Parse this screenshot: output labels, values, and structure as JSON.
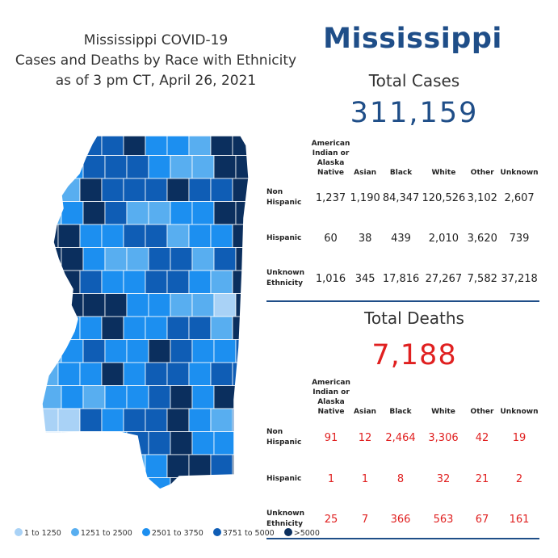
{
  "title_lines": [
    "Mississippi COVID-19",
    "Cases and Deaths by Race with Ethnicity",
    "as of 3 pm CT, April 26, 2021"
  ],
  "state_name": "Mississippi",
  "cases": {
    "heading": "Total Cases",
    "total": "311,159"
  },
  "deaths": {
    "heading": "Total Deaths",
    "total": "7,188"
  },
  "legend": [
    {
      "label": "1 to 1250",
      "color": "#a9d2f6"
    },
    {
      "label": "1251 to 2500",
      "color": "#58aef0"
    },
    {
      "label": "2501 to 3750",
      "color": "#1c8ff0"
    },
    {
      "label": "3751 to 5000",
      "color": "#0f5db5"
    },
    {
      "label": ">5000",
      "color": "#0b2f5e"
    }
  ],
  "chart_data": [
    {
      "type": "table",
      "title": "Total Cases",
      "columns": [
        "American Indian or Alaska Native",
        "Asian",
        "Black",
        "White",
        "Other",
        "Unknown"
      ],
      "rows": [
        {
          "label": "Non Hispanic",
          "values": [
            "1,237",
            "1,190",
            "84,347",
            "120,526",
            "3,102",
            "2,607"
          ]
        },
        {
          "label": "Hispanic",
          "values": [
            "60",
            "38",
            "439",
            "2,010",
            "3,620",
            "739"
          ]
        },
        {
          "label": "Unknown Ethnicity",
          "values": [
            "1,016",
            "345",
            "17,816",
            "27,267",
            "7,582",
            "37,218"
          ]
        }
      ]
    },
    {
      "type": "table",
      "title": "Total Deaths",
      "columns": [
        "American Indian or Alaska Native",
        "Asian",
        "Black",
        "White",
        "Other",
        "Unknown"
      ],
      "rows": [
        {
          "label": "Non Hispanic",
          "values": [
            "91",
            "12",
            "2,464",
            "3,306",
            "42",
            "19"
          ]
        },
        {
          "label": "Hispanic",
          "values": [
            "1",
            "1",
            "8",
            "32",
            "21",
            "2"
          ]
        },
        {
          "label": "Unknown Ethnicity",
          "values": [
            "25",
            "7",
            "366",
            "563",
            "67",
            "161"
          ]
        }
      ]
    },
    {
      "type": "heatmap",
      "title": "",
      "legend": [
        "1 to 1250",
        "1251 to 2500",
        "2501 to 3750",
        "3751 to 5000",
        ">5000"
      ]
    }
  ]
}
